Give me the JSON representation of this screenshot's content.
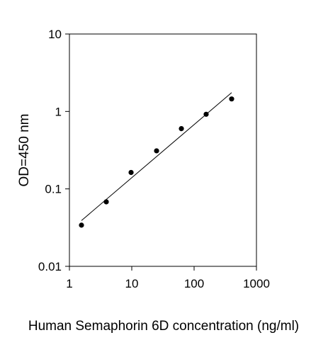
{
  "chart_data": {
    "type": "scatter",
    "title": "",
    "xlabel": "Human  Semaphorin 6D concentration (ng/ml)",
    "ylabel": "OD=450 nm",
    "x_scale": "log",
    "y_scale": "log",
    "xlim": [
      1,
      1000
    ],
    "ylim": [
      0.01,
      10
    ],
    "x_ticks": [
      1,
      10,
      100,
      1000
    ],
    "x_tick_labels": [
      "1",
      "10",
      "100",
      "1000"
    ],
    "y_ticks": [
      0.01,
      0.1,
      1,
      10
    ],
    "y_tick_labels": [
      "0.01",
      "0.1",
      "1",
      "10"
    ],
    "grid": false,
    "legend": "none",
    "series": [
      {
        "x": [
          1.56,
          3.9,
          9.75,
          25,
          62.5,
          156,
          400
        ],
        "y": [
          0.034,
          0.068,
          0.163,
          0.31,
          0.6,
          0.92,
          1.45
        ]
      }
    ],
    "fit_line": {
      "x": [
        1.56,
        400
      ],
      "y": [
        0.039,
        1.75
      ]
    },
    "colors": {
      "points": "#000000",
      "line": "#000000",
      "axis": "#000000"
    }
  }
}
